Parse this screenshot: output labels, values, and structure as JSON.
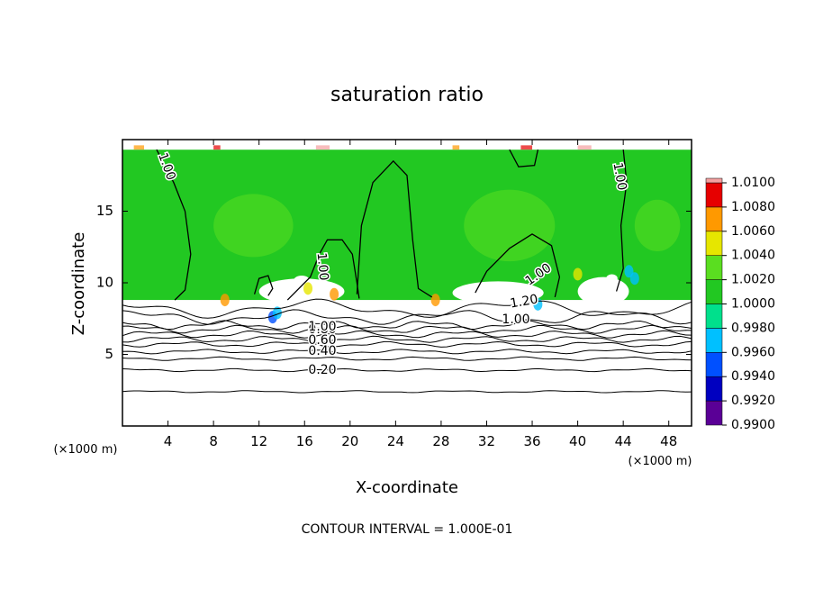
{
  "chart_data": {
    "type": "contour",
    "title": "saturation ratio",
    "x_label": "X-coordinate",
    "y_label": "Z-coordinate",
    "x_unit_label": "(×1000 m)",
    "xlim": [
      0,
      50
    ],
    "ylim": [
      0,
      20
    ],
    "xticks": [
      4,
      8,
      12,
      16,
      20,
      24,
      28,
      32,
      36,
      40,
      44,
      48
    ],
    "yticks": [
      5,
      10,
      15
    ],
    "colorbar": {
      "ticks": [
        {
          "value": 0.99,
          "label": "0.9900"
        },
        {
          "value": 0.992,
          "label": "0.9920"
        },
        {
          "value": 0.994,
          "label": "0.9940"
        },
        {
          "value": 0.996,
          "label": "0.9960"
        },
        {
          "value": 0.998,
          "label": "0.9980"
        },
        {
          "value": 1.0,
          "label": "1.0000"
        },
        {
          "value": 1.002,
          "label": "1.0020"
        },
        {
          "value": 1.004,
          "label": "1.0040"
        },
        {
          "value": 1.006,
          "label": "1.0060"
        },
        {
          "value": 1.008,
          "label": "1.0080"
        },
        {
          "value": 1.01,
          "label": "1.0100"
        }
      ],
      "colors": [
        "#5a0096",
        "#0000c0",
        "#0050ff",
        "#00c0ff",
        "#00e08c",
        "#22c822",
        "#5ade20",
        "#e6e600",
        "#ff9900",
        "#e60000",
        "#f4a0a0"
      ]
    },
    "contour_levels": [
      0.1,
      0.2,
      0.3,
      0.4,
      0.5,
      0.6,
      0.7,
      0.8,
      0.9,
      1.0,
      1.1,
      1.2
    ],
    "contour_labels": [
      {
        "value": 0.2,
        "label": "0.20"
      },
      {
        "value": 0.4,
        "label": "0.40"
      },
      {
        "value": 0.6,
        "label": "0.60"
      },
      {
        "value": 0.8,
        "label": "0.80"
      },
      {
        "value": 1.0,
        "label": "1.00"
      },
      {
        "value": 1.2,
        "label": "1.20"
      }
    ],
    "contour_interval_text": "CONTOUR INTERVAL = 1.000E-01"
  }
}
